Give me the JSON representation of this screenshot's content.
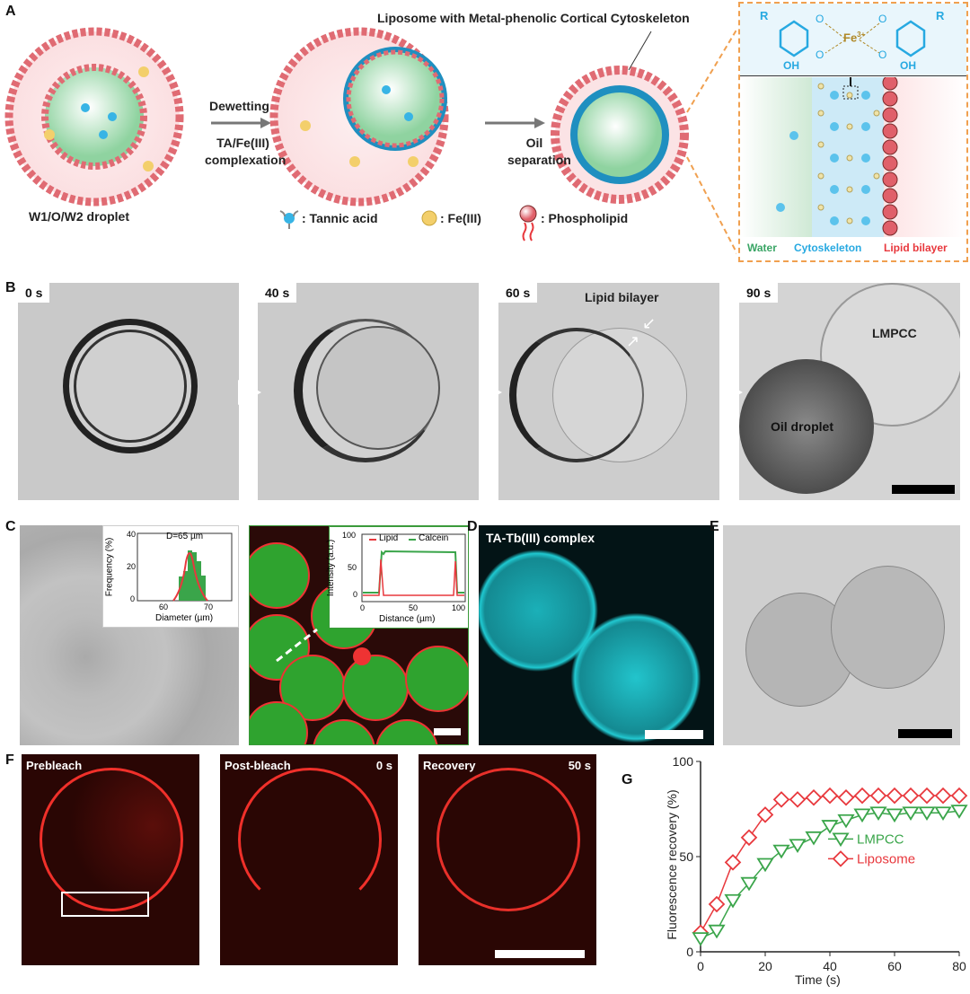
{
  "panels": {
    "a": "A",
    "b": "B",
    "c": "C",
    "d": "D",
    "e": "E",
    "f": "F",
    "g": "G"
  },
  "panelA": {
    "title": "Liposome with Metal-phenolic Cortical Cytoskeleton",
    "step1_top": "Dewetting",
    "step1_bottom": "TA/Fe(III) complexation",
    "step2": "Oil separation",
    "droplet_label": "W1/O/W2 droplet",
    "legend": [
      {
        "icon": "tannic-acid-icon",
        "label": ": Tannic acid"
      },
      {
        "icon": "fe-icon",
        "label": ": Fe(III)"
      },
      {
        "icon": "phospholipid-icon",
        "label": ": Phospholipid"
      }
    ],
    "inset": {
      "R1": "R",
      "R2": "R",
      "O": "O",
      "metal": "Fe",
      "charge": "3+",
      "OH": "OH",
      "zones": [
        {
          "label": "Water",
          "color": "#3aa565"
        },
        {
          "label": "Cytoskeleton",
          "color": "#27a9e1"
        },
        {
          "label": "Lipid bilayer",
          "color": "#e8383d"
        }
      ]
    },
    "colors": {
      "dashed_box": "#f0a050",
      "lipid": "#e8676b",
      "water_core": "#bfe6c8",
      "shell": "#1f8fc0"
    }
  },
  "panelB": {
    "times": [
      "0 s",
      "40 s",
      "60 s",
      "90 s"
    ],
    "lipid_bilayer": "Lipid bilayer",
    "lmpcc": "LMPCC",
    "oil_droplet": "Oil droplet"
  },
  "panelC": {
    "hist": {
      "ylabel": "Frequency (%)",
      "xlabel": "Diameter (µm)",
      "annotation": "D=65 µm",
      "yticks": [
        "0",
        "20",
        "40"
      ],
      "xticks": [
        "60",
        "70"
      ]
    },
    "profile": {
      "ylabel": "Intensity (a.u.)",
      "xlabel": "Distance (µm)",
      "yticks": [
        "0",
        "50",
        "100"
      ],
      "xticks": [
        "0",
        "50",
        "100"
      ],
      "legend": [
        "Lipid",
        "Calcein"
      ]
    }
  },
  "panelD": {
    "label": "TA-Tb(III) complex"
  },
  "panelF": {
    "stages": [
      {
        "label": "Prebleach",
        "time": ""
      },
      {
        "label": "Post-bleach",
        "time": "0 s"
      },
      {
        "label": "Recovery",
        "time": "50 s"
      }
    ]
  },
  "chart_data": {
    "type": "line",
    "xlabel": "Time (s)",
    "ylabel": "Fluorescence recovery (%)",
    "xlim": [
      0,
      80
    ],
    "ylim": [
      0,
      100
    ],
    "xticks": [
      0,
      20,
      40,
      60,
      80
    ],
    "yticks": [
      0,
      50,
      100
    ],
    "legend_position": "center-right",
    "x": [
      0,
      5,
      10,
      15,
      20,
      25,
      30,
      35,
      40,
      45,
      50,
      55,
      60,
      65,
      70,
      75,
      80
    ],
    "series": [
      {
        "name": "Liposome",
        "color": "#e8383d",
        "marker": "diamond",
        "values": [
          10,
          25,
          47,
          60,
          72,
          80,
          80,
          81,
          82,
          81,
          82,
          82,
          82,
          82,
          82,
          82,
          82
        ]
      },
      {
        "name": "LMPCC",
        "color": "#3aa54a",
        "marker": "triangle-down",
        "values": [
          7,
          11,
          27,
          36,
          46,
          53,
          56,
          60,
          66,
          69,
          72,
          73,
          72,
          73,
          73,
          73,
          74
        ]
      }
    ]
  }
}
